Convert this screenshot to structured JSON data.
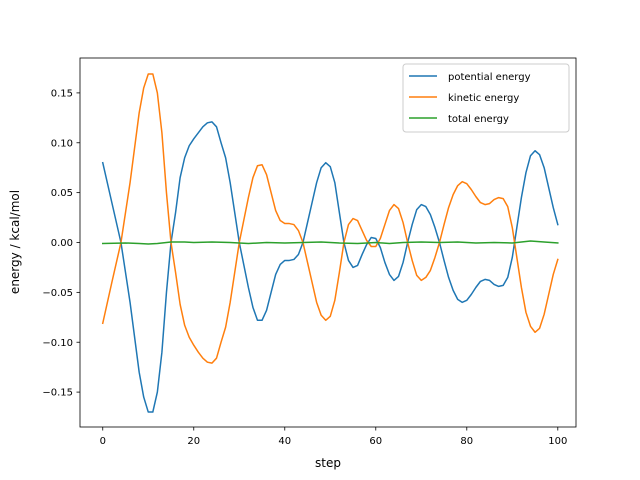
{
  "chart_data": {
    "type": "line",
    "xlabel": "step",
    "ylabel": "energy / kcal/mol",
    "xlim": [
      -5,
      104
    ],
    "ylim": [
      -0.185,
      0.185
    ],
    "xticks": [
      0,
      20,
      40,
      60,
      80,
      100
    ],
    "yticks": [
      -0.15,
      -0.1,
      -0.05,
      0.0,
      0.05,
      0.1,
      0.15
    ],
    "xtick_labels": [
      "0",
      "20",
      "40",
      "60",
      "80",
      "100"
    ],
    "ytick_labels": [
      "−0.15",
      "−0.10",
      "−0.05",
      "0.00",
      "0.05",
      "0.10",
      "0.15"
    ],
    "grid": false,
    "legend_position": "top-right",
    "legend": [
      "potential energy",
      "kinetic energy",
      "total energy"
    ],
    "series": [
      {
        "name": "potential energy",
        "color": "#1f77b4",
        "points": [
          [
            0,
            0.08
          ],
          [
            2,
            0.04
          ],
          [
            4,
            0.0
          ],
          [
            6,
            -0.06
          ],
          [
            8,
            -0.13
          ],
          [
            9,
            -0.155
          ],
          [
            10,
            -0.17
          ],
          [
            11,
            -0.17
          ],
          [
            12,
            -0.15
          ],
          [
            13,
            -0.11
          ],
          [
            14,
            -0.05
          ],
          [
            15,
            0.0
          ],
          [
            16,
            0.03
          ],
          [
            17,
            0.065
          ],
          [
            18,
            0.085
          ],
          [
            19,
            0.097
          ],
          [
            20,
            0.104
          ],
          [
            21,
            0.11
          ],
          [
            22,
            0.116
          ],
          [
            23,
            0.12
          ],
          [
            24,
            0.121
          ],
          [
            25,
            0.116
          ],
          [
            26,
            0.1
          ],
          [
            27,
            0.085
          ],
          [
            28,
            0.06
          ],
          [
            30,
            0.0
          ],
          [
            32,
            -0.045
          ],
          [
            33,
            -0.065
          ],
          [
            34,
            -0.078
          ],
          [
            35,
            -0.078
          ],
          [
            36,
            -0.068
          ],
          [
            37,
            -0.05
          ],
          [
            38,
            -0.032
          ],
          [
            39,
            -0.022
          ],
          [
            40,
            -0.018
          ],
          [
            41,
            -0.018
          ],
          [
            42,
            -0.017
          ],
          [
            43,
            -0.012
          ],
          [
            44,
            0.0
          ],
          [
            45,
            0.02
          ],
          [
            46,
            0.04
          ],
          [
            47,
            0.06
          ],
          [
            48,
            0.075
          ],
          [
            49,
            0.08
          ],
          [
            50,
            0.076
          ],
          [
            51,
            0.06
          ],
          [
            52,
            0.03
          ],
          [
            53,
            0.0
          ],
          [
            54,
            -0.018
          ],
          [
            55,
            -0.025
          ],
          [
            56,
            -0.023
          ],
          [
            57,
            -0.012
          ],
          [
            58,
            -0.002
          ],
          [
            59,
            0.005
          ],
          [
            60,
            0.004
          ],
          [
            61,
            -0.005
          ],
          [
            62,
            -0.02
          ],
          [
            63,
            -0.032
          ],
          [
            64,
            -0.038
          ],
          [
            65,
            -0.034
          ],
          [
            66,
            -0.02
          ],
          [
            67,
            0.0
          ],
          [
            68,
            0.018
          ],
          [
            69,
            0.033
          ],
          [
            70,
            0.038
          ],
          [
            71,
            0.036
          ],
          [
            72,
            0.028
          ],
          [
            73,
            0.015
          ],
          [
            74,
            0.0
          ],
          [
            75,
            -0.018
          ],
          [
            76,
            -0.035
          ],
          [
            77,
            -0.048
          ],
          [
            78,
            -0.057
          ],
          [
            79,
            -0.06
          ],
          [
            80,
            -0.058
          ],
          [
            81,
            -0.052
          ],
          [
            82,
            -0.045
          ],
          [
            83,
            -0.039
          ],
          [
            84,
            -0.037
          ],
          [
            85,
            -0.038
          ],
          [
            86,
            -0.042
          ],
          [
            87,
            -0.044
          ],
          [
            88,
            -0.043
          ],
          [
            89,
            -0.035
          ],
          [
            90,
            -0.015
          ],
          [
            91,
            0.015
          ],
          [
            92,
            0.045
          ],
          [
            93,
            0.07
          ],
          [
            94,
            0.087
          ],
          [
            95,
            0.092
          ],
          [
            96,
            0.088
          ],
          [
            97,
            0.075
          ],
          [
            98,
            0.055
          ],
          [
            99,
            0.035
          ],
          [
            100,
            0.018
          ]
        ]
      },
      {
        "name": "kinetic energy",
        "color": "#ff7f0e",
        "points": [
          [
            0,
            -0.081
          ],
          [
            2,
            -0.04
          ],
          [
            4,
            0.0
          ],
          [
            6,
            0.06
          ],
          [
            8,
            0.13
          ],
          [
            9,
            0.155
          ],
          [
            10,
            0.169
          ],
          [
            11,
            0.169
          ],
          [
            12,
            0.15
          ],
          [
            13,
            0.11
          ],
          [
            14,
            0.05
          ],
          [
            15,
            0.0
          ],
          [
            16,
            -0.03
          ],
          [
            17,
            -0.062
          ],
          [
            18,
            -0.083
          ],
          [
            19,
            -0.095
          ],
          [
            20,
            -0.103
          ],
          [
            21,
            -0.11
          ],
          [
            22,
            -0.116
          ],
          [
            23,
            -0.12
          ],
          [
            24,
            -0.121
          ],
          [
            25,
            -0.116
          ],
          [
            26,
            -0.1
          ],
          [
            27,
            -0.085
          ],
          [
            28,
            -0.06
          ],
          [
            30,
            0.0
          ],
          [
            32,
            0.045
          ],
          [
            33,
            0.065
          ],
          [
            34,
            0.077
          ],
          [
            35,
            0.078
          ],
          [
            36,
            0.068
          ],
          [
            37,
            0.05
          ],
          [
            38,
            0.032
          ],
          [
            39,
            0.022
          ],
          [
            40,
            0.019
          ],
          [
            41,
            0.019
          ],
          [
            42,
            0.018
          ],
          [
            43,
            0.012
          ],
          [
            44,
            0.0
          ],
          [
            45,
            -0.02
          ],
          [
            46,
            -0.04
          ],
          [
            47,
            -0.06
          ],
          [
            48,
            -0.073
          ],
          [
            49,
            -0.078
          ],
          [
            50,
            -0.074
          ],
          [
            51,
            -0.058
          ],
          [
            52,
            -0.03
          ],
          [
            53,
            0.0
          ],
          [
            54,
            0.018
          ],
          [
            55,
            0.024
          ],
          [
            56,
            0.022
          ],
          [
            57,
            0.012
          ],
          [
            58,
            0.002
          ],
          [
            59,
            -0.004
          ],
          [
            60,
            -0.004
          ],
          [
            61,
            0.004
          ],
          [
            62,
            0.018
          ],
          [
            63,
            0.032
          ],
          [
            64,
            0.038
          ],
          [
            65,
            0.034
          ],
          [
            66,
            0.02
          ],
          [
            67,
            0.0
          ],
          [
            68,
            -0.018
          ],
          [
            69,
            -0.033
          ],
          [
            70,
            -0.038
          ],
          [
            71,
            -0.035
          ],
          [
            72,
            -0.028
          ],
          [
            73,
            -0.015
          ],
          [
            74,
            0.0
          ],
          [
            75,
            0.018
          ],
          [
            76,
            0.035
          ],
          [
            77,
            0.048
          ],
          [
            78,
            0.057
          ],
          [
            79,
            0.061
          ],
          [
            80,
            0.059
          ],
          [
            81,
            0.053
          ],
          [
            82,
            0.046
          ],
          [
            83,
            0.04
          ],
          [
            84,
            0.038
          ],
          [
            85,
            0.039
          ],
          [
            86,
            0.043
          ],
          [
            87,
            0.045
          ],
          [
            88,
            0.044
          ],
          [
            89,
            0.036
          ],
          [
            90,
            0.015
          ],
          [
            91,
            -0.015
          ],
          [
            92,
            -0.045
          ],
          [
            93,
            -0.07
          ],
          [
            94,
            -0.084
          ],
          [
            95,
            -0.09
          ],
          [
            96,
            -0.086
          ],
          [
            97,
            -0.072
          ],
          [
            98,
            -0.052
          ],
          [
            99,
            -0.032
          ],
          [
            100,
            -0.017
          ]
        ]
      },
      {
        "name": "total energy",
        "color": "#2ca02c",
        "points": [
          [
            0,
            -0.001
          ],
          [
            5,
            -0.0005
          ],
          [
            8,
            -0.001
          ],
          [
            10,
            -0.0015
          ],
          [
            12,
            -0.001
          ],
          [
            15,
            0.0005
          ],
          [
            18,
            0.0005
          ],
          [
            20,
            0.0
          ],
          [
            24,
            0.0005
          ],
          [
            28,
            0.0
          ],
          [
            32,
            -0.001
          ],
          [
            36,
            0.0
          ],
          [
            40,
            -0.0005
          ],
          [
            44,
            0.0
          ],
          [
            48,
            0.0005
          ],
          [
            52,
            -0.0005
          ],
          [
            56,
            -0.001
          ],
          [
            60,
            0.0
          ],
          [
            63,
            -0.001
          ],
          [
            66,
            0.0
          ],
          [
            70,
            0.0005
          ],
          [
            74,
            0.0
          ],
          [
            78,
            0.0005
          ],
          [
            82,
            -0.0005
          ],
          [
            86,
            0.0
          ],
          [
            90,
            -0.0005
          ],
          [
            94,
            0.0015
          ],
          [
            97,
            0.0005
          ],
          [
            100,
            -0.0005
          ]
        ]
      }
    ]
  }
}
